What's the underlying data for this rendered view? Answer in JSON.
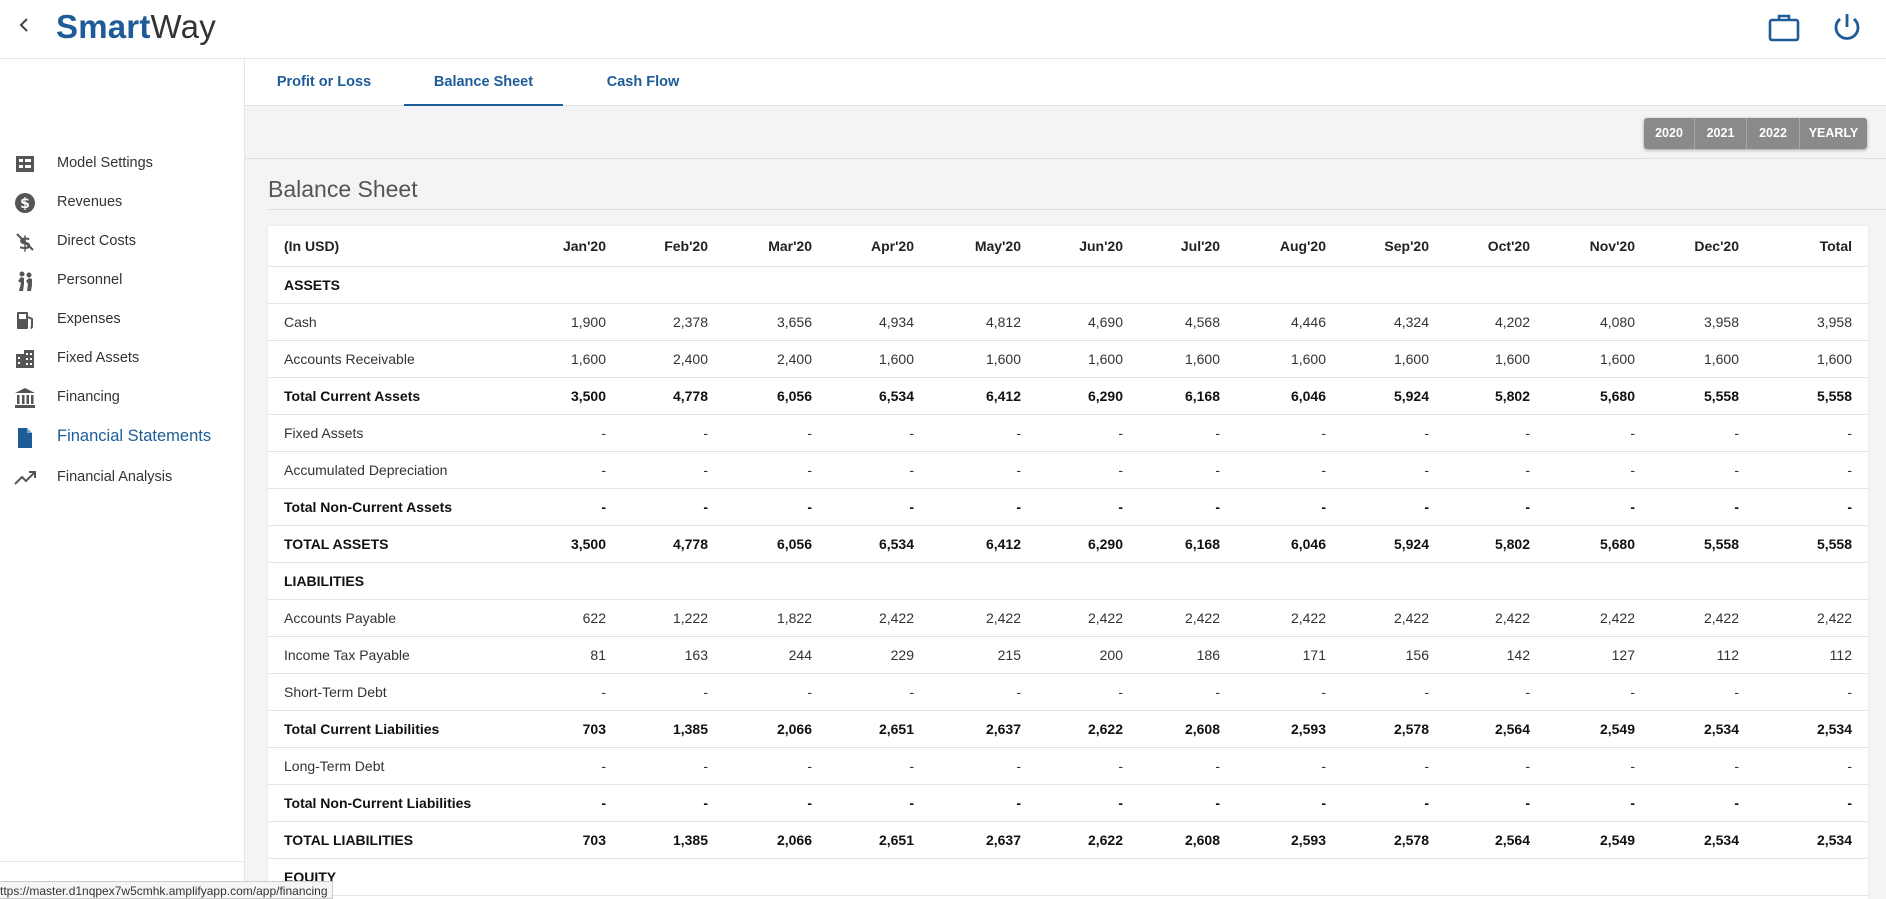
{
  "app": {
    "logo_bold": "Smart",
    "logo_regular": "Way"
  },
  "sidebar": {
    "items": [
      {
        "label": "Model Settings",
        "icon": "model-settings-icon"
      },
      {
        "label": "Revenues",
        "icon": "dollar-icon"
      },
      {
        "label": "Direct Costs",
        "icon": "cost-icon"
      },
      {
        "label": "Personnel",
        "icon": "personnel-icon"
      },
      {
        "label": "Expenses",
        "icon": "fuel-icon"
      },
      {
        "label": "Fixed Assets",
        "icon": "building-icon"
      },
      {
        "label": "Financing",
        "icon": "bank-icon"
      },
      {
        "label": "Financial Statements",
        "icon": "document-icon",
        "active": true
      },
      {
        "label": "Financial Analysis",
        "icon": "trend-icon"
      }
    ]
  },
  "tabs": [
    {
      "label": "Profit or Loss"
    },
    {
      "label": "Balance Sheet",
      "active": true
    },
    {
      "label": "Cash Flow"
    }
  ],
  "year_buttons": [
    "2020",
    "2021",
    "2022",
    "YEARLY"
  ],
  "page_title": "Balance Sheet",
  "table": {
    "headers": [
      "(In USD)",
      "Jan'20",
      "Feb'20",
      "Mar'20",
      "Apr'20",
      "May'20",
      "Jun'20",
      "Jul'20",
      "Aug'20",
      "Sep'20",
      "Oct'20",
      "Nov'20",
      "Dec'20",
      "Total"
    ],
    "rows": [
      {
        "type": "section",
        "cells": [
          "ASSETS",
          "",
          "",
          "",
          "",
          "",
          "",
          "",
          "",
          "",
          "",
          "",
          "",
          ""
        ]
      },
      {
        "type": "normal",
        "cells": [
          "Cash",
          "1,900",
          "2,378",
          "3,656",
          "4,934",
          "4,812",
          "4,690",
          "4,568",
          "4,446",
          "4,324",
          "4,202",
          "4,080",
          "3,958",
          "3,958"
        ]
      },
      {
        "type": "normal",
        "cells": [
          "Accounts Receivable",
          "1,600",
          "2,400",
          "2,400",
          "1,600",
          "1,600",
          "1,600",
          "1,600",
          "1,600",
          "1,600",
          "1,600",
          "1,600",
          "1,600",
          "1,600"
        ]
      },
      {
        "type": "bold",
        "cells": [
          "Total Current Assets",
          "3,500",
          "4,778",
          "6,056",
          "6,534",
          "6,412",
          "6,290",
          "6,168",
          "6,046",
          "5,924",
          "5,802",
          "5,680",
          "5,558",
          "5,558"
        ]
      },
      {
        "type": "normal",
        "cells": [
          "Fixed Assets",
          "-",
          "-",
          "-",
          "-",
          "-",
          "-",
          "-",
          "-",
          "-",
          "-",
          "-",
          "-",
          "-"
        ]
      },
      {
        "type": "normal",
        "cells": [
          "Accumulated Depreciation",
          "-",
          "-",
          "-",
          "-",
          "-",
          "-",
          "-",
          "-",
          "-",
          "-",
          "-",
          "-",
          "-"
        ]
      },
      {
        "type": "bold",
        "cells": [
          "Total Non-Current Assets",
          "-",
          "-",
          "-",
          "-",
          "-",
          "-",
          "-",
          "-",
          "-",
          "-",
          "-",
          "-",
          "-"
        ]
      },
      {
        "type": "bold",
        "cells": [
          "TOTAL ASSETS",
          "3,500",
          "4,778",
          "6,056",
          "6,534",
          "6,412",
          "6,290",
          "6,168",
          "6,046",
          "5,924",
          "5,802",
          "5,680",
          "5,558",
          "5,558"
        ]
      },
      {
        "type": "section",
        "cells": [
          "LIABILITIES",
          "",
          "",
          "",
          "",
          "",
          "",
          "",
          "",
          "",
          "",
          "",
          "",
          ""
        ]
      },
      {
        "type": "normal",
        "cells": [
          "Accounts Payable",
          "622",
          "1,222",
          "1,822",
          "2,422",
          "2,422",
          "2,422",
          "2,422",
          "2,422",
          "2,422",
          "2,422",
          "2,422",
          "2,422",
          "2,422"
        ]
      },
      {
        "type": "normal",
        "cells": [
          "Income Tax Payable",
          "81",
          "163",
          "244",
          "229",
          "215",
          "200",
          "186",
          "171",
          "156",
          "142",
          "127",
          "112",
          "112"
        ]
      },
      {
        "type": "normal",
        "cells": [
          "Short-Term Debt",
          "-",
          "-",
          "-",
          "-",
          "-",
          "-",
          "-",
          "-",
          "-",
          "-",
          "-",
          "-",
          "-"
        ]
      },
      {
        "type": "bold",
        "cells": [
          "Total Current Liabilities",
          "703",
          "1,385",
          "2,066",
          "2,651",
          "2,637",
          "2,622",
          "2,608",
          "2,593",
          "2,578",
          "2,564",
          "2,549",
          "2,534",
          "2,534"
        ]
      },
      {
        "type": "normal",
        "cells": [
          "Long-Term Debt",
          "-",
          "-",
          "-",
          "-",
          "-",
          "-",
          "-",
          "-",
          "-",
          "-",
          "-",
          "-",
          "-"
        ]
      },
      {
        "type": "bold",
        "cells": [
          "Total Non-Current Liabilities",
          "-",
          "-",
          "-",
          "-",
          "-",
          "-",
          "-",
          "-",
          "-",
          "-",
          "-",
          "-",
          "-"
        ]
      },
      {
        "type": "bold",
        "cells": [
          "TOTAL LIABILITIES",
          "703",
          "1,385",
          "2,066",
          "2,651",
          "2,637",
          "2,622",
          "2,608",
          "2,593",
          "2,578",
          "2,564",
          "2,549",
          "2,534",
          "2,534"
        ]
      },
      {
        "type": "section",
        "cells": [
          "EQUITY",
          "",
          "",
          "",
          "",
          "",
          "",
          "",
          "",
          "",
          "",
          "",
          "",
          ""
        ]
      }
    ]
  },
  "status_url": "ttps://master.d1nqpex7w5cmhk.amplifyapp.com/app/financing",
  "colors": {
    "brand": "#1e5c97",
    "year_button": "#8a8a8a",
    "content_bg": "#f3f4f5"
  }
}
